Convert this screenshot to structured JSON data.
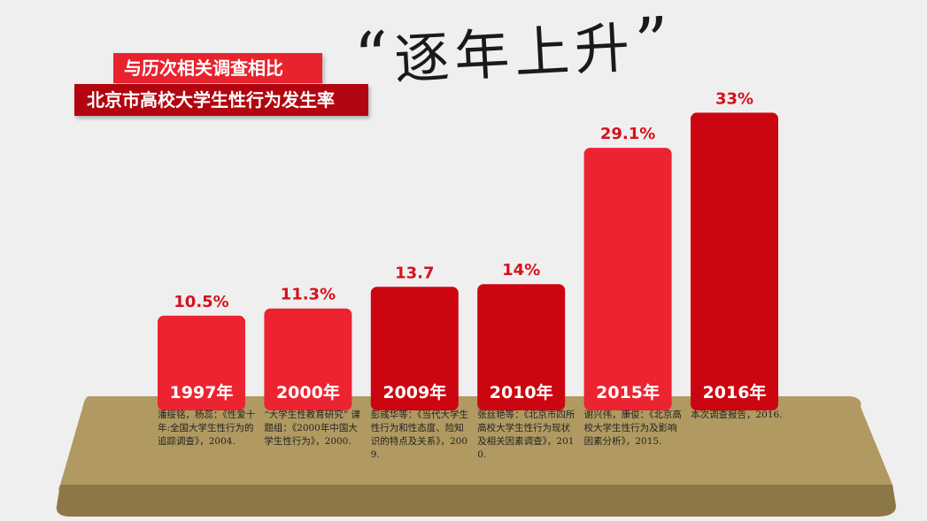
{
  "banner": {
    "line1": "与历次相关调查相比",
    "line2": "北京市高校大学生性行为发生率"
  },
  "headline": {
    "open_quote": "“",
    "text": "逐年上升",
    "close_quote": "”"
  },
  "colors": {
    "bar_bright": "#ec2431",
    "bar_dark": "#cc0610",
    "label_red": "#d6111b",
    "table_top": "#b09a62",
    "table_edge": "#8c7846",
    "background": "#efefef"
  },
  "chart_data": {
    "type": "bar",
    "categories": [
      "1997年",
      "2000年",
      "2009年",
      "2010年",
      "2015年",
      "2016年"
    ],
    "values": [
      10.5,
      11.3,
      13.7,
      14,
      29.1,
      33
    ],
    "value_labels": [
      "10.5%",
      "11.3%",
      "13.7",
      "14%",
      "29.1%",
      "33%"
    ],
    "bar_colors": [
      "bright",
      "bright",
      "dark",
      "dark",
      "bright",
      "dark"
    ],
    "ylim": [
      0,
      35
    ]
  },
  "sources": [
    "潘绥铭，杨蕊：《性爱十年:全国大学生性行为的追踪调查》，2004.",
    "“大学生性教育研究” 课题组：《2000年中国大学生性行为》，2000.",
    "彭彧华等：《当代大学生性行为和性态度、险知识的特点及关系》，2009.",
    "张丝艳等：《北京市四所高校大学生性行为现状及相关因素调查》，2010.",
    "谢兴伟，康俊：《北京高校大学生性行为及影响因素分析》，2015.",
    "本次调查报告，2016."
  ]
}
